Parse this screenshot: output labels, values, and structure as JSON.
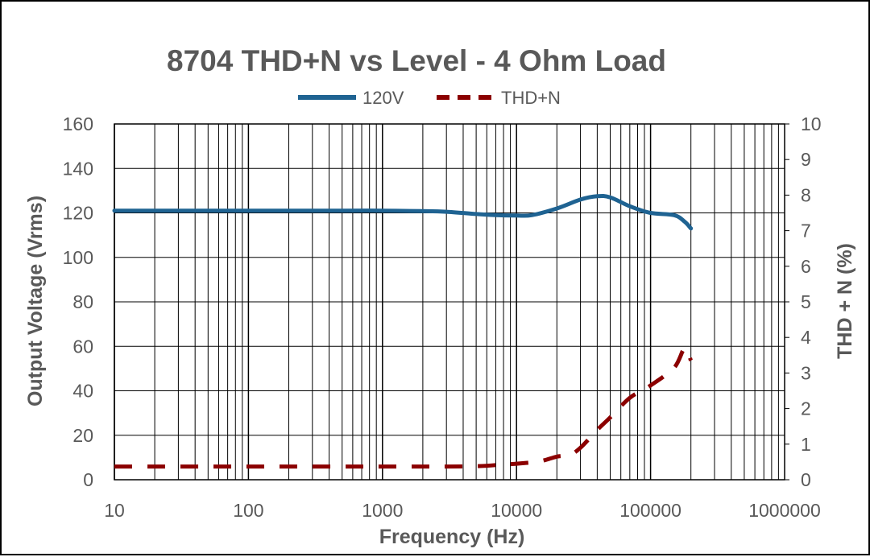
{
  "chart_data": {
    "type": "line",
    "title": "8704 THD+N vs Level - 4 Ohm Load",
    "xlabel": "Frequency (Hz)",
    "ylabel": "Output Voltage (Vrms)",
    "y2label": "THD + N (%)",
    "x_scale": "log",
    "xlim": [
      10,
      1000000
    ],
    "ylim": [
      0,
      160
    ],
    "y2lim": [
      0,
      10
    ],
    "x_ticks": [
      "10",
      "100",
      "1000",
      "10000",
      "100000",
      "1000000"
    ],
    "y_ticks": [
      "0",
      "20",
      "40",
      "60",
      "80",
      "100",
      "120",
      "140",
      "160"
    ],
    "y2_ticks": [
      "0",
      "1",
      "2",
      "3",
      "4",
      "5",
      "6",
      "7",
      "8",
      "9",
      "10"
    ],
    "grid": true,
    "legend_position": "top",
    "series": [
      {
        "name": "120V",
        "axis": "left",
        "color": "#1f6392",
        "style": "solid",
        "x": [
          10,
          20,
          50,
          100,
          200,
          500,
          1000,
          2000,
          3000,
          5000,
          7000,
          10000,
          13000,
          20000,
          30000,
          40000,
          50000,
          70000,
          100000,
          150000,
          180000,
          200000
        ],
        "y": [
          121,
          121,
          121,
          121,
          121,
          121,
          121,
          120.8,
          120.5,
          119.5,
          119,
          118.8,
          119,
          122,
          126,
          127.5,
          127,
          123,
          120,
          119,
          116,
          113
        ]
      },
      {
        "name": "THD+N",
        "axis": "right",
        "color": "#8b0000",
        "style": "dashed",
        "x": [
          10,
          20,
          50,
          100,
          200,
          500,
          1000,
          2000,
          5000,
          8000,
          10000,
          15000,
          20000,
          25000,
          30000,
          40000,
          50000,
          70000,
          100000,
          150000,
          180000,
          200000
        ],
        "y": [
          0.37,
          0.37,
          0.37,
          0.37,
          0.37,
          0.37,
          0.37,
          0.37,
          0.38,
          0.43,
          0.45,
          0.52,
          0.65,
          0.7,
          0.9,
          1.4,
          1.75,
          2.3,
          2.65,
          3.15,
          3.7,
          3.35
        ]
      }
    ]
  }
}
